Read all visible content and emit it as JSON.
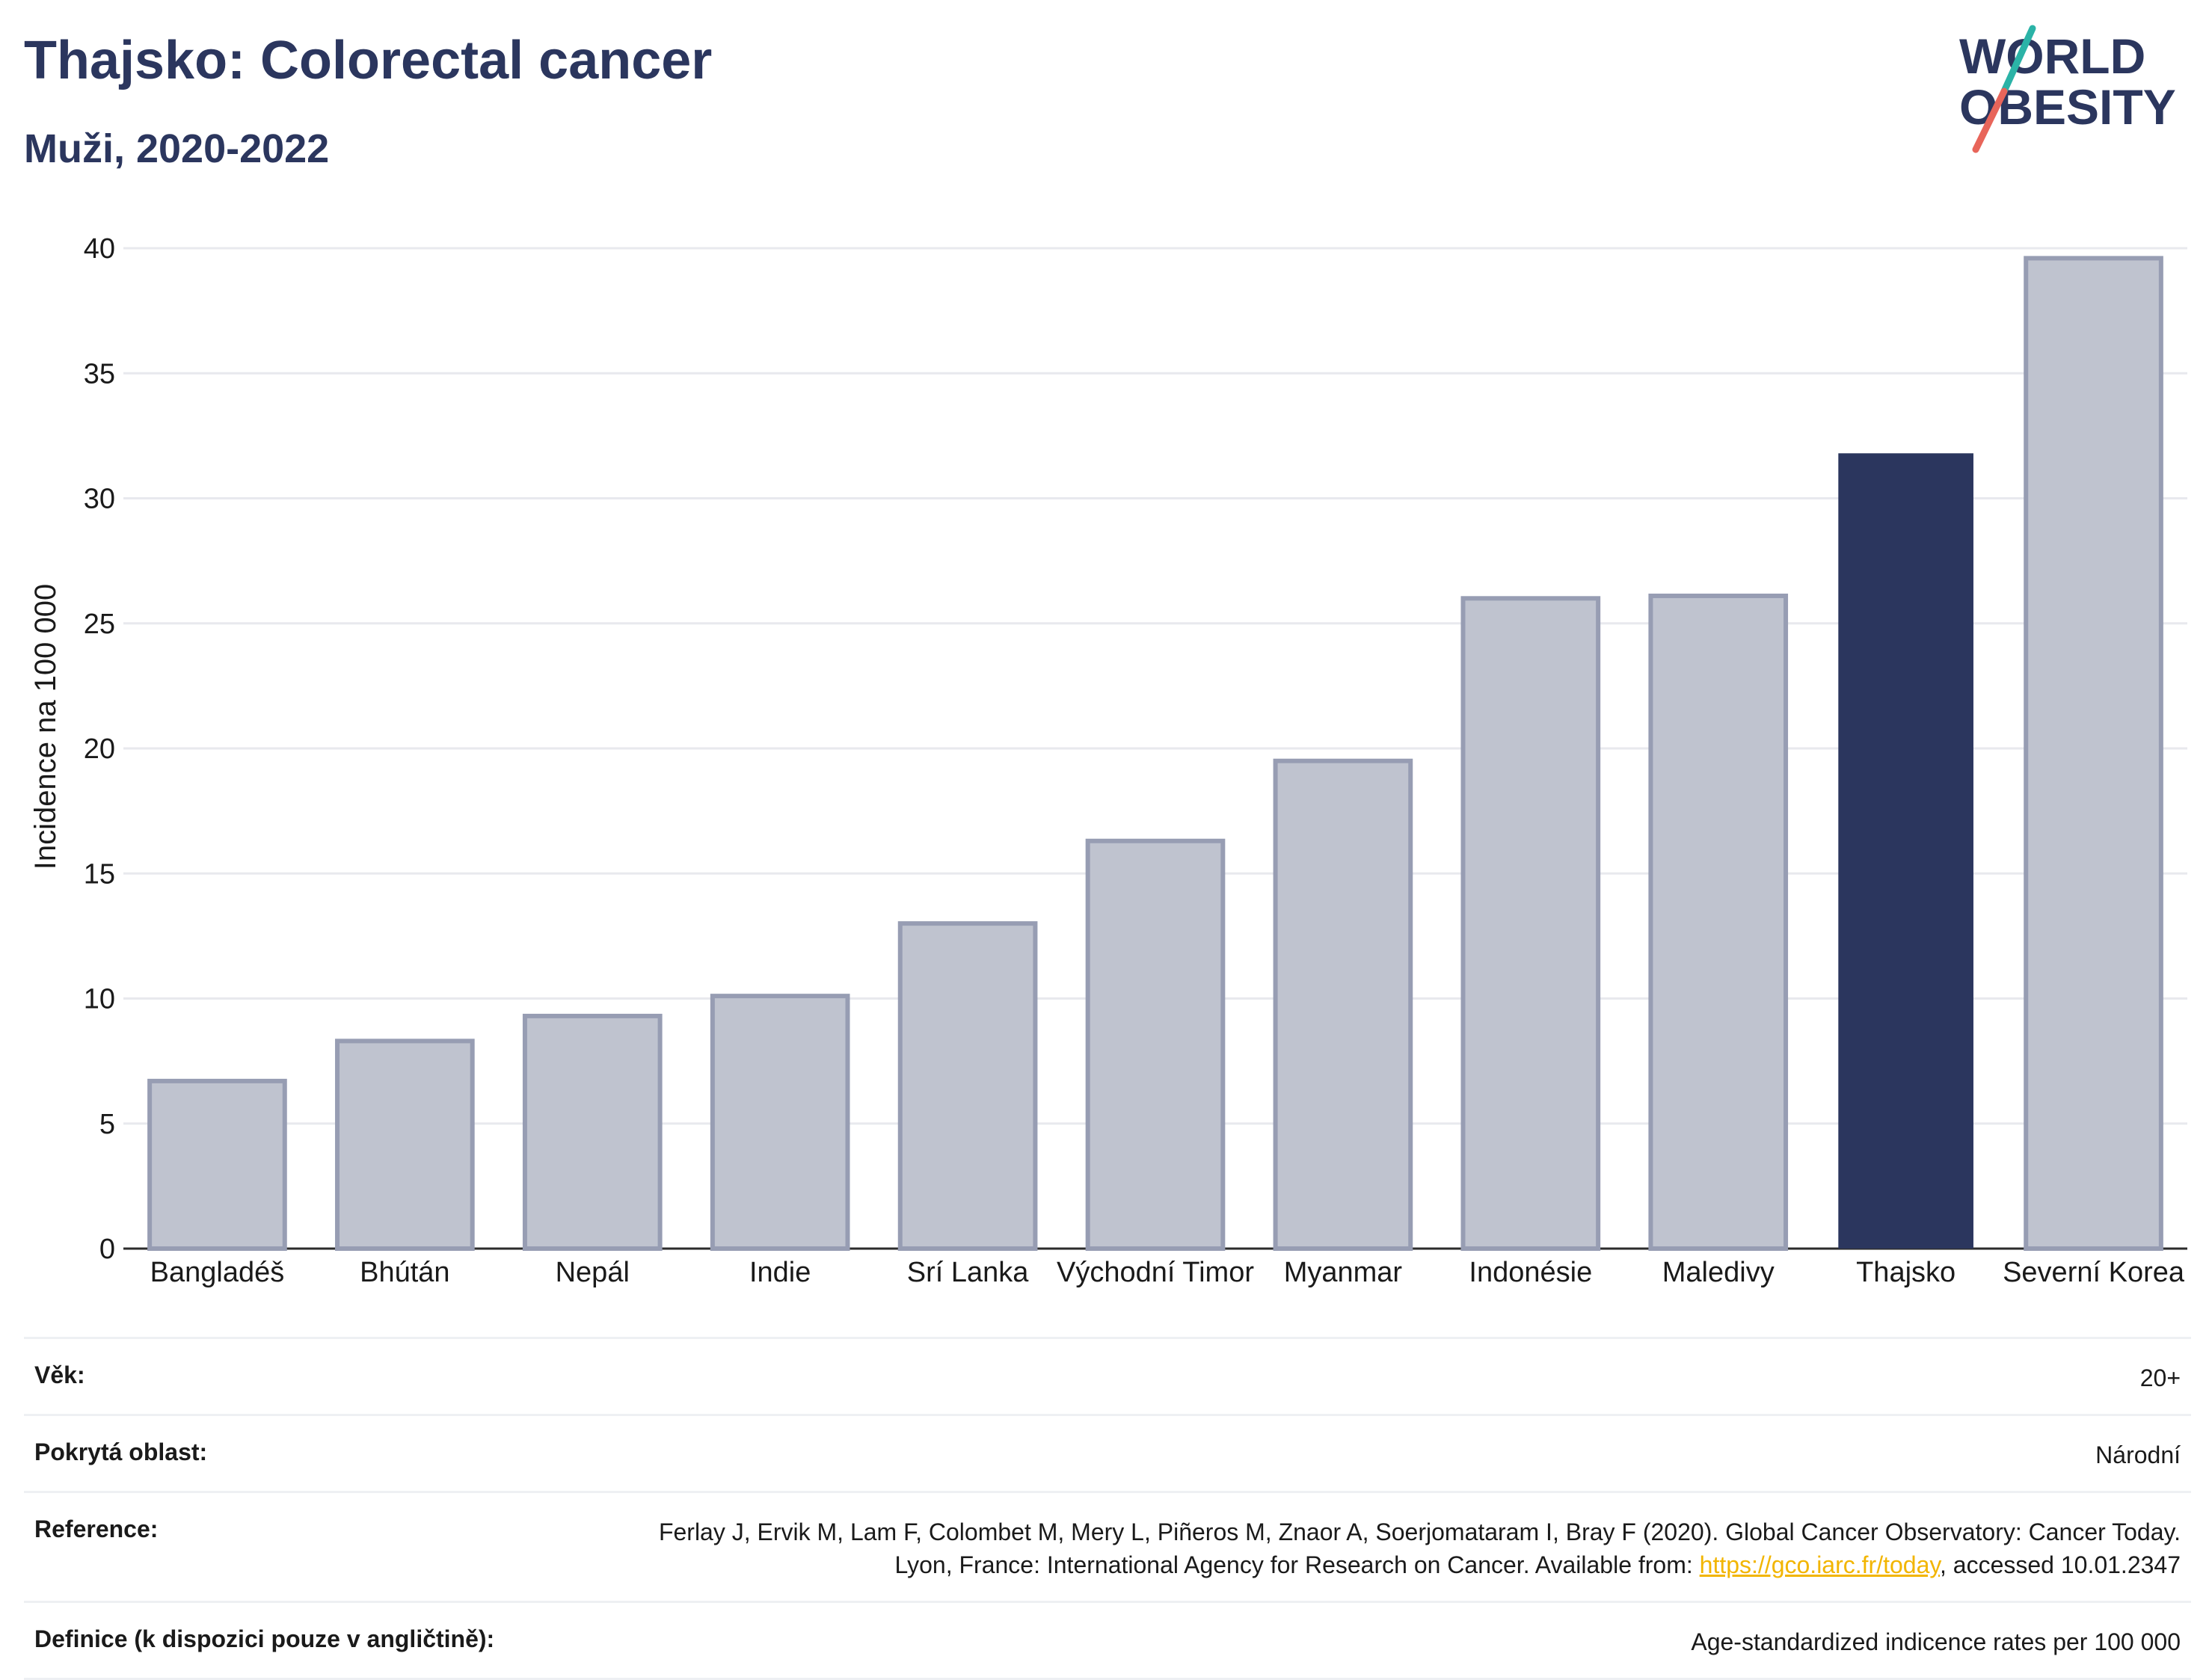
{
  "header": {
    "title": "Thajsko: Colorectal cancer",
    "subtitle": "Muži, 2020-2022"
  },
  "logo": {
    "line1": "WORLD",
    "line2": "OBESITY",
    "text_color": "#2b365e",
    "slash_color_top": "#2bb3a7",
    "slash_color_bottom": "#e8655a"
  },
  "chart_data": {
    "type": "bar",
    "title": "Thajsko: Colorectal cancer",
    "subtitle": "Muži, 2020-2022",
    "xlabel": "",
    "ylabel": "Incidence na 100 000",
    "ylim": [
      0,
      40
    ],
    "yticks": [
      0,
      5,
      10,
      15,
      20,
      25,
      30,
      35,
      40
    ],
    "grid": true,
    "categories": [
      "Bangladéš",
      "Bhútán",
      "Nepál",
      "Indie",
      "Srí Lanka",
      "Východní Timor",
      "Myanmar",
      "Indonésie",
      "Maledivy",
      "Thajsko",
      "Severní Korea"
    ],
    "values": [
      6.7,
      8.3,
      9.3,
      10.1,
      13.0,
      16.3,
      19.5,
      26.0,
      26.1,
      31.8,
      39.6
    ],
    "highlight": "Thajsko",
    "colors": {
      "bar": "#bfc3cf",
      "bar_border": "#979db3",
      "highlight": "#2b365e",
      "grid": "#e8e9ee",
      "axis": "#2b2b2b"
    }
  },
  "info_table": [
    {
      "label": "Věk:",
      "value": "20+"
    },
    {
      "label": "Pokrytá oblast:",
      "value": "Národní"
    },
    {
      "label": "Reference:",
      "value_before": "Ferlay J, Ervik M, Lam F, Colombet M, Mery L, Piñeros M, Znaor A, Soerjomataram I, Bray F (2020). Global Cancer Observatory: Cancer Today. Lyon, France: International Agency for Research on Cancer. Available from: ",
      "link_text": "https://gco.iarc.fr/today",
      "value_after": ", accessed 10.01.2347",
      "link_color": "#f2b500"
    },
    {
      "label": "Definice (k dispozici pouze v angličtině):",
      "value": "Age-standardized indicence rates per 100 000"
    }
  ]
}
